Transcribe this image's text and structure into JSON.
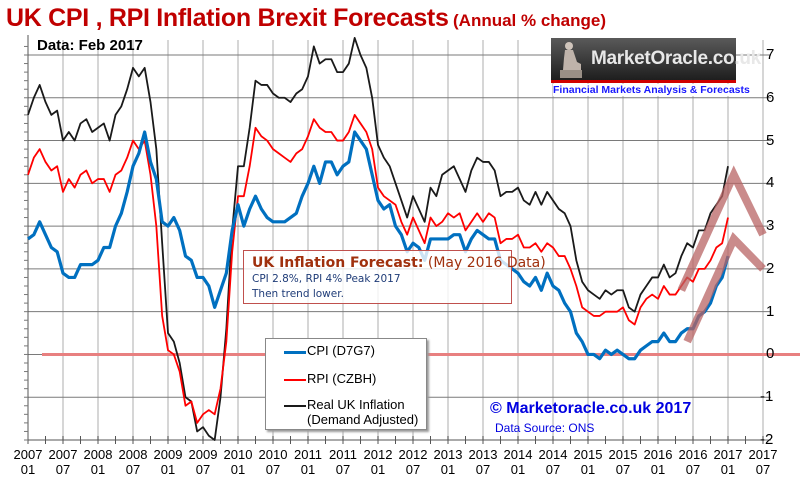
{
  "chart_data": {
    "type": "line",
    "title": "UK CPI , RPI Inflation Brexit Forecasts",
    "subtitle": "(Annual % change)",
    "data_note": "Data:  Feb 2017",
    "xlabel": "",
    "ylabel": "",
    "ylim": [
      -2,
      7
    ],
    "yticks": [
      "7",
      "6",
      "5",
      "4",
      "3",
      "2",
      "1",
      "0",
      "-1",
      "-2"
    ],
    "ytick_values": [
      7,
      6,
      5,
      4,
      3,
      2,
      1,
      0,
      -1,
      -2
    ],
    "xticks": [
      {
        "year": "2007",
        "month": "01"
      },
      {
        "year": "2007",
        "month": "07"
      },
      {
        "year": "2008",
        "month": "01"
      },
      {
        "year": "2008",
        "month": "07"
      },
      {
        "year": "2009",
        "month": "01"
      },
      {
        "year": "2009",
        "month": "07"
      },
      {
        "year": "2010",
        "month": "01"
      },
      {
        "year": "2010",
        "month": "07"
      },
      {
        "year": "2011",
        "month": "01"
      },
      {
        "year": "2011",
        "month": "07"
      },
      {
        "year": "2012",
        "month": "01"
      },
      {
        "year": "2012",
        "month": "07"
      },
      {
        "year": "2013",
        "month": "01"
      },
      {
        "year": "2013",
        "month": "07"
      },
      {
        "year": "2014",
        "month": "01"
      },
      {
        "year": "2014",
        "month": "07"
      },
      {
        "year": "2015",
        "month": "01"
      },
      {
        "year": "2015",
        "month": "07"
      },
      {
        "year": "2016",
        "month": "01"
      },
      {
        "year": "2016",
        "month": "07"
      },
      {
        "year": "2017",
        "month": "01"
      },
      {
        "year": "2017",
        "month": "07"
      }
    ],
    "x_range_months": [
      "2007-01",
      "2017-07"
    ],
    "x_start": "2007-01",
    "grid": true,
    "zero_line_color": "#e88080",
    "series": [
      {
        "name": "CPI (D7G7)",
        "color": "#0070c0",
        "values": [
          2.7,
          2.8,
          3.1,
          2.8,
          2.5,
          2.4,
          1.9,
          1.8,
          1.8,
          2.1,
          2.1,
          2.1,
          2.2,
          2.5,
          2.5,
          3.0,
          3.3,
          3.8,
          4.4,
          4.7,
          5.2,
          4.5,
          4.1,
          3.1,
          3.0,
          3.2,
          2.9,
          2.3,
          2.2,
          1.8,
          1.8,
          1.6,
          1.1,
          1.5,
          1.9,
          2.9,
          3.5,
          3.0,
          3.4,
          3.7,
          3.4,
          3.2,
          3.1,
          3.1,
          3.1,
          3.2,
          3.3,
          3.7,
          4.0,
          4.4,
          4.0,
          4.5,
          4.5,
          4.2,
          4.4,
          4.5,
          5.2,
          5.0,
          4.8,
          4.2,
          3.6,
          3.4,
          3.5,
          3.0,
          2.8,
          2.4,
          2.6,
          2.5,
          2.2,
          2.7,
          2.7,
          2.7,
          2.7,
          2.8,
          2.8,
          2.4,
          2.7,
          2.9,
          2.8,
          2.7,
          2.7,
          2.2,
          2.1,
          2.0,
          1.9,
          1.7,
          1.6,
          1.8,
          1.5,
          1.9,
          1.6,
          1.5,
          1.2,
          1.0,
          0.5,
          0.3,
          0.0,
          0.0,
          -0.1,
          0.1,
          0.0,
          0.1,
          0.0,
          -0.1,
          -0.1,
          0.1,
          0.2,
          0.3,
          0.3,
          0.5,
          0.3,
          0.3,
          0.5,
          0.6,
          0.6,
          0.9,
          1.0,
          1.2,
          1.6,
          1.8,
          2.3
        ],
        "legend": "CPI (D7G7)"
      },
      {
        "name": "RPI (CZBH)",
        "color": "#ff0000",
        "values": [
          4.2,
          4.6,
          4.8,
          4.5,
          4.3,
          4.4,
          3.8,
          4.1,
          3.9,
          4.2,
          4.3,
          4.0,
          4.1,
          4.1,
          3.8,
          4.2,
          4.3,
          4.6,
          5.0,
          4.8,
          5.0,
          4.2,
          3.0,
          0.9,
          0.1,
          0.0,
          -0.4,
          -1.2,
          -1.1,
          -1.6,
          -1.4,
          -1.3,
          -1.4,
          -0.8,
          0.3,
          2.4,
          3.7,
          3.7,
          4.4,
          5.3,
          5.1,
          5.0,
          4.8,
          4.7,
          4.6,
          4.5,
          4.7,
          4.8,
          5.1,
          5.5,
          5.3,
          5.2,
          5.2,
          5.0,
          5.0,
          5.2,
          5.6,
          5.4,
          5.2,
          4.8,
          3.9,
          3.7,
          3.6,
          3.5,
          3.1,
          2.8,
          3.2,
          2.9,
          2.6,
          3.2,
          3.0,
          3.1,
          3.3,
          3.2,
          3.3,
          2.9,
          3.1,
          3.3,
          3.1,
          3.3,
          3.2,
          2.6,
          2.7,
          2.7,
          2.8,
          2.5,
          2.5,
          2.6,
          2.4,
          2.6,
          2.5,
          2.3,
          2.3,
          2.0,
          1.6,
          1.1,
          1.0,
          0.9,
          0.9,
          1.0,
          1.0,
          1.0,
          1.1,
          0.8,
          0.7,
          1.1,
          1.3,
          1.4,
          1.3,
          1.6,
          1.4,
          1.4,
          1.6,
          1.8,
          1.7,
          2.0,
          2.0,
          2.2,
          2.5,
          2.6,
          3.2
        ],
        "legend": "RPI (CZBH)"
      },
      {
        "name": "Real UK Inflation (Demand Adjusted)",
        "color": "#1a1a1a",
        "values": [
          5.6,
          6.0,
          6.3,
          5.9,
          5.6,
          5.7,
          5.0,
          5.2,
          5.0,
          5.4,
          5.5,
          5.2,
          5.3,
          5.4,
          5.0,
          5.6,
          5.8,
          6.2,
          6.7,
          6.5,
          6.7,
          5.9,
          4.8,
          2.6,
          0.5,
          0.3,
          -0.2,
          -1.0,
          -1.1,
          -1.8,
          -1.7,
          -1.9,
          -2.0,
          -1.0,
          0.6,
          2.9,
          4.4,
          4.4,
          5.3,
          6.4,
          6.3,
          6.3,
          6.1,
          6.0,
          6.0,
          5.9,
          6.1,
          6.2,
          6.5,
          7.2,
          6.8,
          6.9,
          6.9,
          6.6,
          6.6,
          6.8,
          7.4,
          7.0,
          6.7,
          6.0,
          4.9,
          4.6,
          4.4,
          4.0,
          3.6,
          3.2,
          3.7,
          3.4,
          3.1,
          3.9,
          3.7,
          4.2,
          4.3,
          4.4,
          4.1,
          3.8,
          4.3,
          4.6,
          4.5,
          4.5,
          4.3,
          3.7,
          3.8,
          3.8,
          3.9,
          3.6,
          3.5,
          3.8,
          3.5,
          3.8,
          3.6,
          3.4,
          3.3,
          3.0,
          2.2,
          1.7,
          1.5,
          1.4,
          1.3,
          1.5,
          1.4,
          1.5,
          1.5,
          1.1,
          1.0,
          1.4,
          1.6,
          1.8,
          1.8,
          2.1,
          1.8,
          1.9,
          2.3,
          2.6,
          2.5,
          2.9,
          2.9,
          3.3,
          3.5,
          3.7,
          4.4
        ],
        "legend": "Real UK Inflation"
      }
    ],
    "forecast_overlay": {
      "color": "#b86464",
      "cpi_path": [
        {
          "month": "2016-06",
          "value": 0.3
        },
        {
          "month": "2017-02",
          "value": 2.7
        },
        {
          "month": "2017-07",
          "value": 2.0
        }
      ],
      "rpi_path": [
        {
          "month": "2016-05",
          "value": 1.5
        },
        {
          "month": "2017-02",
          "value": 4.2
        },
        {
          "month": "2017-07",
          "value": 2.8
        }
      ]
    }
  },
  "annotation": {
    "heading_bold": "UK Inflation Forecast:",
    "heading_rest": " (May 2016 Data)",
    "line1": "CPI 2.8%, RPI 4% Peak  2017",
    "line2": "Then trend lower."
  },
  "legend": {
    "cpi": "CPI (D7G7)",
    "rpi": "RPI (CZBH)",
    "real_line1": "Real UK Inflation",
    "real_line2": "(Demand Adjusted)"
  },
  "logo": {
    "name": "MarketOracle.co.uk",
    "tagline": "Financial Markets Analysis & Forecasts"
  },
  "footer": {
    "copyright": "© Marketoracle.co.uk 2017",
    "source": "Data Source: ONS"
  }
}
